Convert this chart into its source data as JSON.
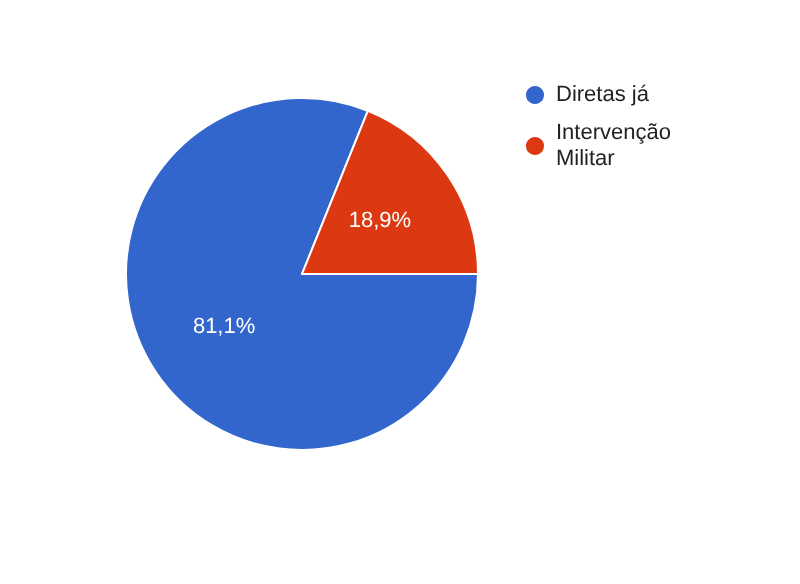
{
  "chart_data": {
    "type": "pie",
    "categories": [
      "Diretas já",
      "Intervenção Militar"
    ],
    "values": [
      81.1,
      18.9
    ],
    "colors": [
      "#3366cc",
      "#dc3912"
    ],
    "value_labels": [
      "81,1%",
      "18,9%"
    ],
    "legend": "top right"
  }
}
